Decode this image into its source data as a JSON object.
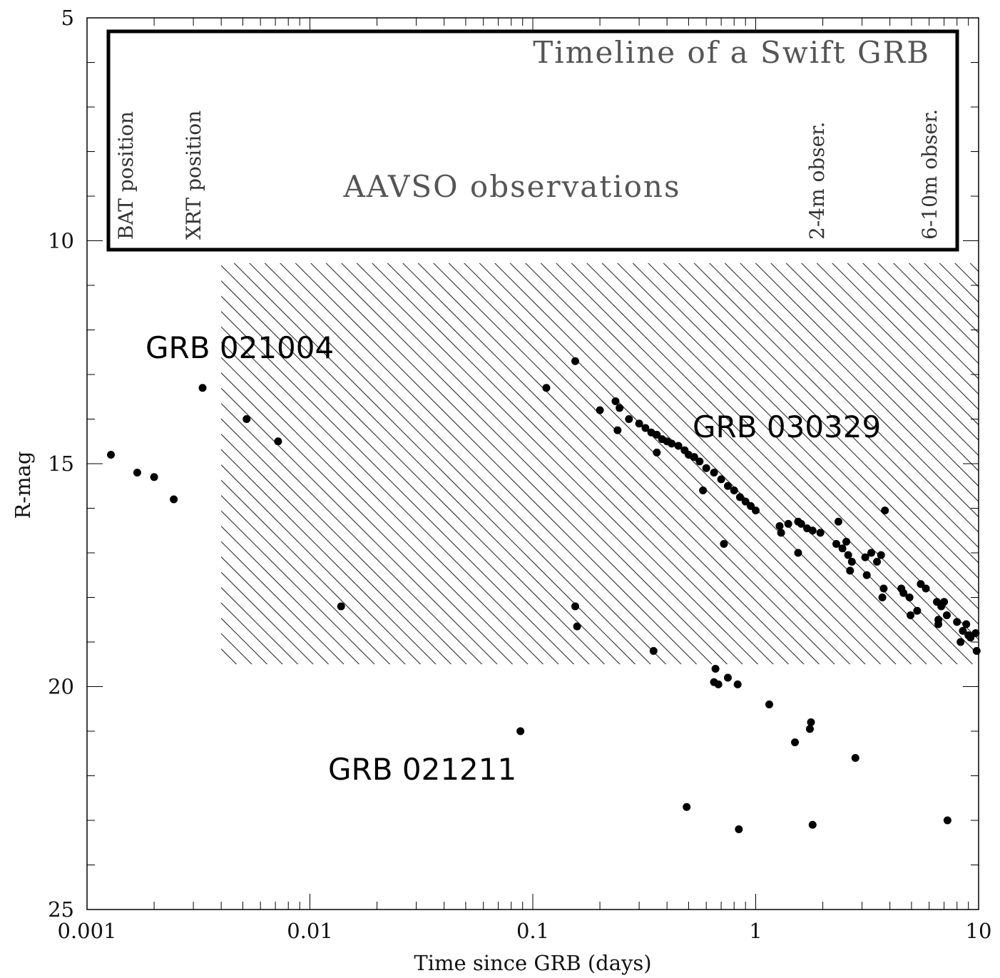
{
  "chart_data": {
    "type": "scatter",
    "title": "",
    "xlabel": "Time since GRB (days)",
    "ylabel": "R-mag",
    "x_scale": "log",
    "xlim": [
      0.001,
      10
    ],
    "ylim": [
      25,
      5
    ],
    "y_inverted": true,
    "grid": false,
    "x_tick_labels": [
      "0.001",
      "0.01",
      "0.1",
      "1",
      "10"
    ],
    "y_tick_labels": [
      "5",
      "10",
      "15",
      "20",
      "25"
    ],
    "timeline_box": {
      "title": "Timeline of a Swift GRB",
      "center_label": "AAVSO observations",
      "markers": [
        "BAT position",
        "XRT position",
        "2-4m obser.",
        "6-10m obser."
      ]
    },
    "hatched_region": {
      "x_range": [
        0.004,
        10
      ],
      "mag_range": [
        10.5,
        19.5
      ]
    },
    "series": [
      {
        "name": "GRB 021004",
        "points": [
          [
            0.00128,
            14.8
          ],
          [
            0.00168,
            15.2
          ],
          [
            0.002,
            15.3
          ],
          [
            0.00245,
            15.8
          ],
          [
            0.0033,
            13.3
          ],
          [
            0.0052,
            14.0
          ],
          [
            0.0072,
            14.5
          ],
          [
            0.0138,
            18.2
          ]
        ]
      },
      {
        "name": "GRB 030329",
        "points": [
          [
            0.155,
            12.7
          ],
          [
            0.115,
            13.3
          ],
          [
            0.2,
            13.8
          ],
          [
            0.235,
            13.6
          ],
          [
            0.245,
            13.75
          ],
          [
            0.24,
            14.25
          ],
          [
            0.27,
            14.0
          ],
          [
            0.3,
            14.1
          ],
          [
            0.32,
            14.2
          ],
          [
            0.34,
            14.3
          ],
          [
            0.36,
            14.35
          ],
          [
            0.38,
            14.45
          ],
          [
            0.4,
            14.5
          ],
          [
            0.42,
            14.55
          ],
          [
            0.45,
            14.6
          ],
          [
            0.48,
            14.7
          ],
          [
            0.5,
            14.8
          ],
          [
            0.53,
            14.85
          ],
          [
            0.56,
            14.95
          ],
          [
            0.6,
            15.1
          ],
          [
            0.65,
            15.2
          ],
          [
            0.7,
            15.35
          ],
          [
            0.75,
            15.5
          ],
          [
            0.8,
            15.6
          ],
          [
            0.85,
            15.75
          ],
          [
            0.9,
            15.85
          ],
          [
            0.95,
            15.95
          ],
          [
            1.0,
            16.05
          ],
          [
            0.36,
            14.75
          ],
          [
            0.58,
            15.6
          ],
          [
            0.72,
            16.8
          ],
          [
            1.28,
            16.4
          ],
          [
            1.4,
            16.35
          ],
          [
            1.55,
            16.3
          ],
          [
            1.6,
            16.35
          ],
          [
            1.7,
            16.45
          ],
          [
            1.8,
            16.5
          ],
          [
            1.95,
            16.55
          ],
          [
            1.3,
            16.55
          ],
          [
            1.55,
            17.0
          ],
          [
            2.35,
            16.3
          ],
          [
            2.3,
            16.8
          ],
          [
            2.45,
            16.9
          ],
          [
            2.55,
            16.75
          ],
          [
            2.6,
            17.05
          ],
          [
            2.7,
            17.2
          ],
          [
            2.65,
            17.4
          ],
          [
            3.1,
            17.1
          ],
          [
            3.3,
            17.0
          ],
          [
            3.5,
            17.2
          ],
          [
            3.65,
            17.05
          ],
          [
            3.8,
            16.05
          ],
          [
            3.15,
            17.5
          ],
          [
            3.75,
            17.8
          ],
          [
            3.7,
            18.0
          ],
          [
            4.5,
            17.8
          ],
          [
            4.6,
            17.9
          ],
          [
            4.9,
            18.0
          ],
          [
            5.5,
            17.7
          ],
          [
            5.8,
            17.8
          ],
          [
            4.95,
            18.4
          ],
          [
            5.3,
            18.3
          ],
          [
            6.5,
            18.1
          ],
          [
            6.8,
            18.2
          ],
          [
            7.0,
            18.1
          ],
          [
            6.6,
            18.5
          ],
          [
            7.2,
            18.4
          ],
          [
            6.6,
            18.6
          ],
          [
            8.0,
            18.55
          ],
          [
            8.5,
            18.75
          ],
          [
            8.8,
            18.6
          ],
          [
            9.2,
            18.9
          ],
          [
            9.7,
            18.8
          ],
          [
            8.3,
            19.0
          ],
          [
            9.8,
            19.2
          ],
          [
            9.0,
            18.85
          ]
        ]
      },
      {
        "name": "GRB 021211",
        "points": [
          [
            0.155,
            18.2
          ],
          [
            0.158,
            18.65
          ],
          [
            0.348,
            19.2
          ],
          [
            0.088,
            21.0
          ],
          [
            0.66,
            19.6
          ],
          [
            0.75,
            19.8
          ],
          [
            0.65,
            19.9
          ],
          [
            0.68,
            19.95
          ],
          [
            0.83,
            19.95
          ],
          [
            1.15,
            20.4
          ],
          [
            1.77,
            20.8
          ],
          [
            1.75,
            20.95
          ],
          [
            1.5,
            21.25
          ],
          [
            2.8,
            21.6
          ],
          [
            0.49,
            22.7
          ],
          [
            0.84,
            23.2
          ],
          [
            1.8,
            23.1
          ],
          [
            7.25,
            23.0
          ]
        ]
      }
    ],
    "annotations": [
      "GRB 021004",
      "GRB 030329",
      "GRB 021211"
    ]
  }
}
